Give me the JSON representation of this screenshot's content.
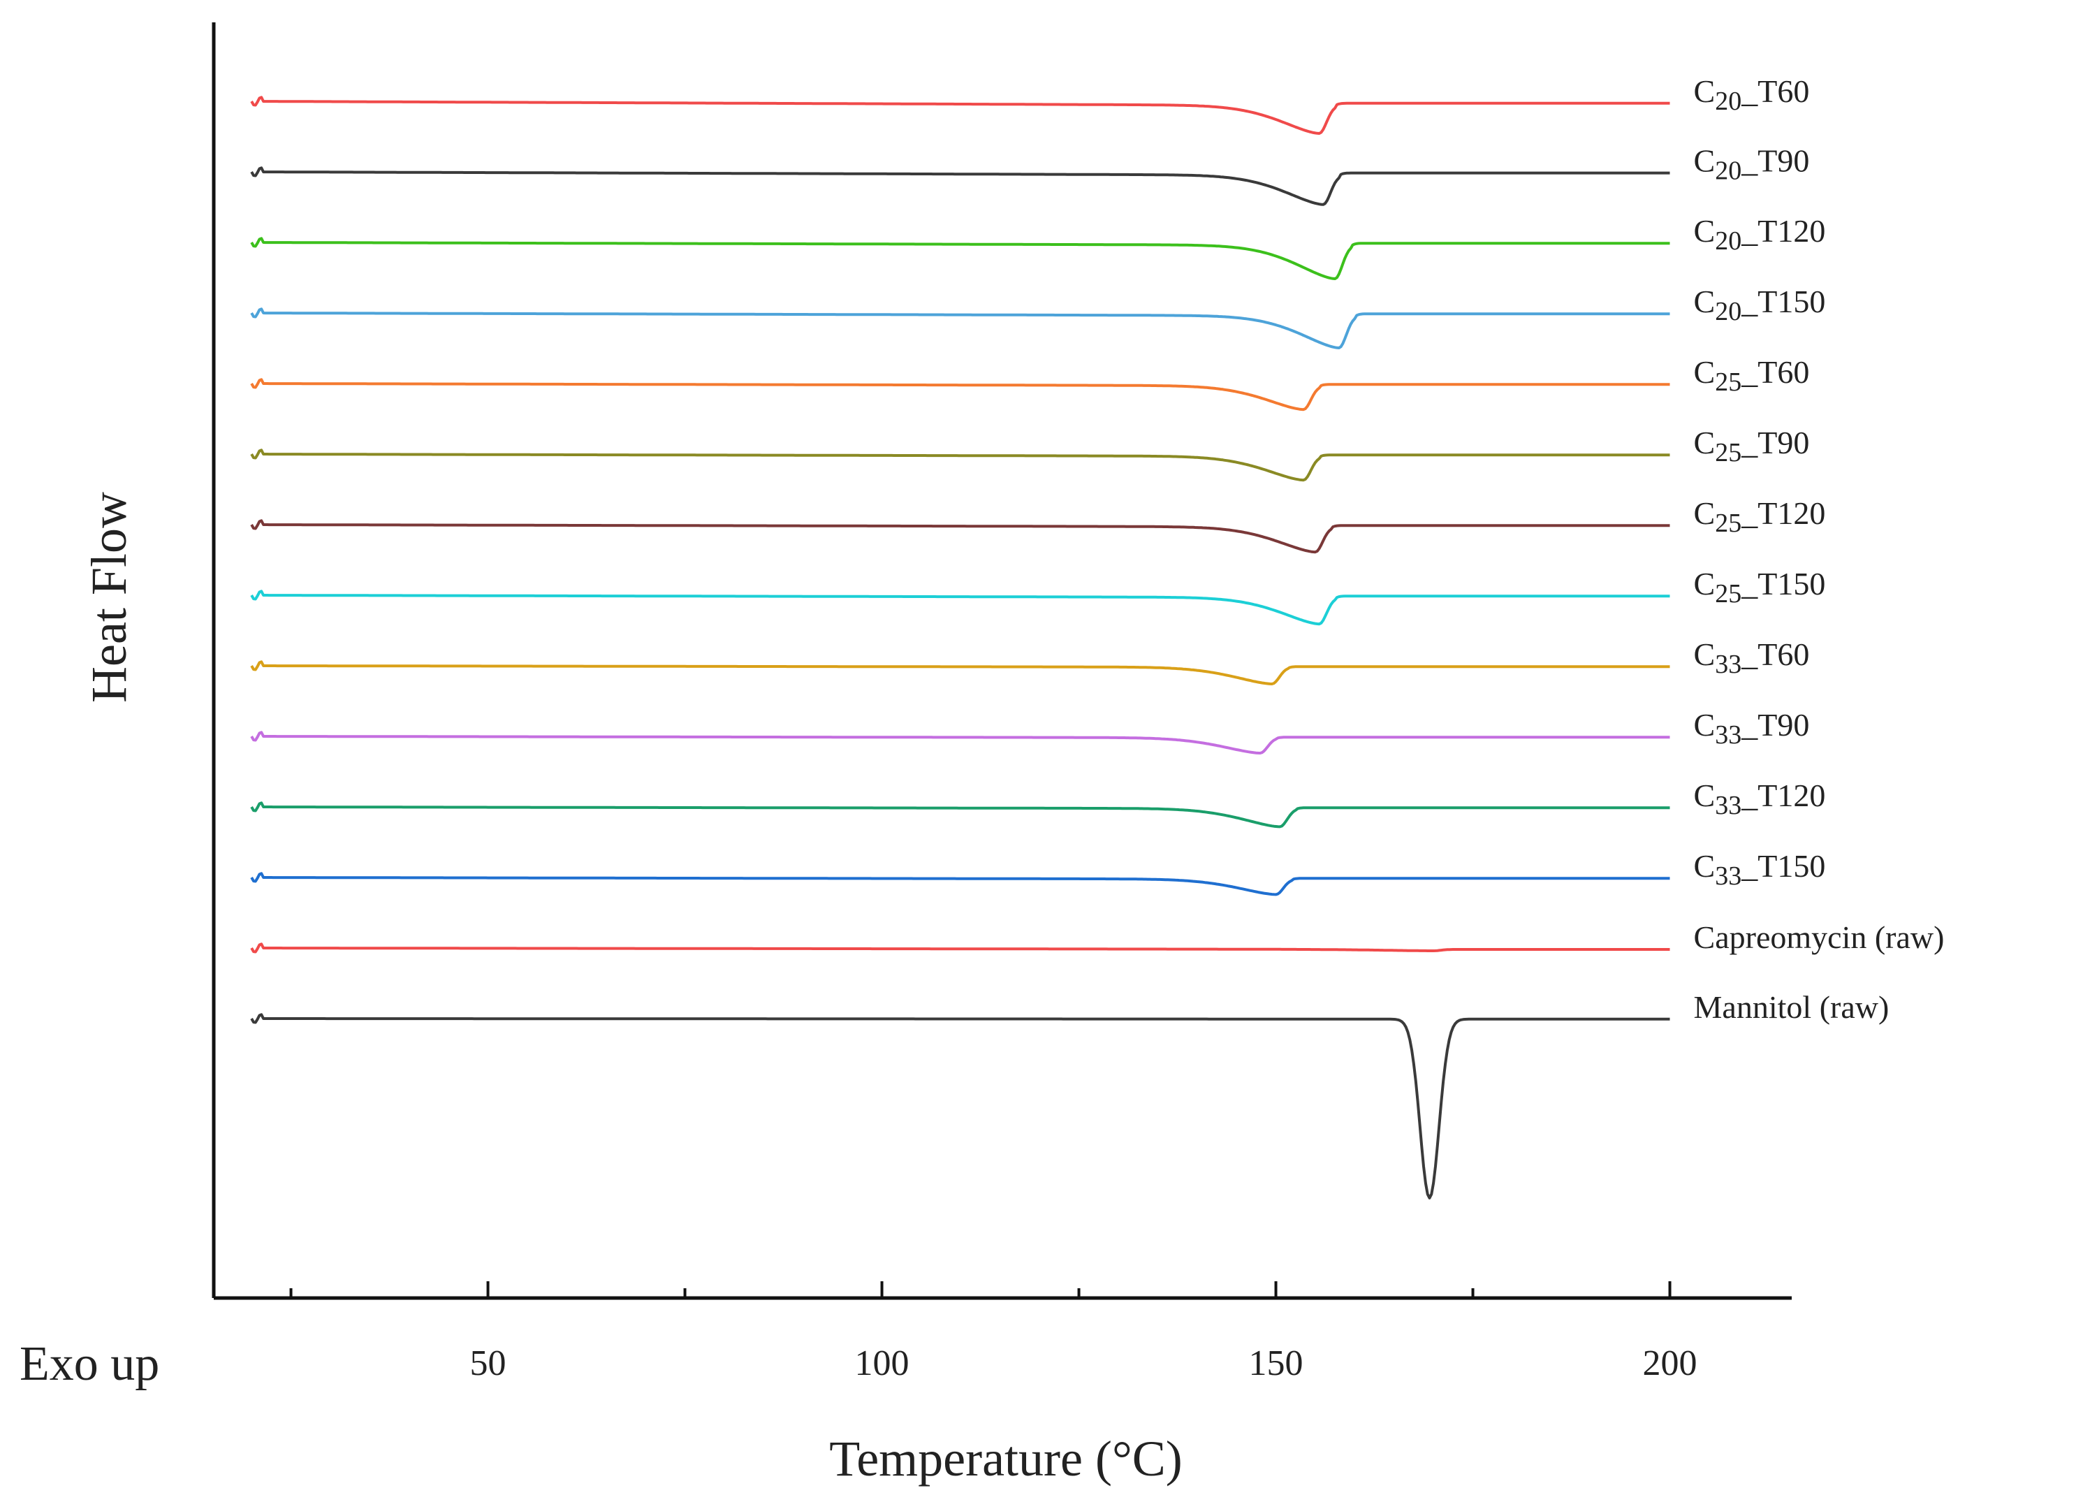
{
  "chart_data": {
    "type": "line",
    "title": "",
    "xlabel": "Temperature (°C)",
    "ylabel": "Heat Flow",
    "corner_note": "Exo up",
    "x_ticks": [
      50,
      100,
      150,
      200
    ],
    "xlim": [
      15,
      210
    ],
    "y_ticks": [],
    "grid": false,
    "legend": "inline labels to the right of each curve",
    "series": [
      {
        "name": "C20_T60",
        "label_main": "C",
        "label_sub": "20",
        "label_rest": "_T60",
        "color": "#f04a4a",
        "offset": 0,
        "peak_temp": 155.5,
        "depth": 1.0,
        "drift": 0.15,
        "width": 7,
        "step": 0.08
      },
      {
        "name": "C20_T90",
        "label_main": "C",
        "label_sub": "20",
        "label_rest": "_T90",
        "color": "#3a3a3a",
        "offset": 1,
        "peak_temp": 156.0,
        "depth": 1.05,
        "drift": 0.12,
        "width": 7,
        "step": 0.08
      },
      {
        "name": "C20_T120",
        "label_main": "C",
        "label_sub": "20",
        "label_rest": "_T120",
        "color": "#3cc01c",
        "offset": 2,
        "peak_temp": 157.5,
        "depth": 1.2,
        "drift": 0.1,
        "width": 7,
        "step": 0.07
      },
      {
        "name": "C20_T150",
        "label_main": "C",
        "label_sub": "20",
        "label_rest": "_T150",
        "color": "#4da3d9",
        "offset": 3,
        "peak_temp": 158.0,
        "depth": 1.15,
        "drift": 0.1,
        "width": 7,
        "step": 0.07
      },
      {
        "name": "C25_T60",
        "label_main": "C",
        "label_sub": "25",
        "label_rest": "_T60",
        "color": "#f47a30",
        "offset": 4,
        "peak_temp": 153.5,
        "depth": 0.85,
        "drift": 0.08,
        "width": 7,
        "step": 0.05
      },
      {
        "name": "C25_T90",
        "label_main": "C",
        "label_sub": "25",
        "label_rest": "_T90",
        "color": "#8a8a24",
        "offset": 5,
        "peak_temp": 153.5,
        "depth": 0.85,
        "drift": 0.08,
        "width": 7,
        "step": 0.05
      },
      {
        "name": "C25_T120",
        "label_main": "C",
        "label_sub": "25",
        "label_rest": "_T120",
        "color": "#7a3838",
        "offset": 6,
        "peak_temp": 155.0,
        "depth": 0.9,
        "drift": 0.08,
        "width": 7,
        "step": 0.05
      },
      {
        "name": "C25_T150",
        "label_main": "C",
        "label_sub": "25",
        "label_rest": "_T150",
        "color": "#1ccfd6",
        "offset": 7,
        "peak_temp": 155.5,
        "depth": 0.95,
        "drift": 0.08,
        "width": 7,
        "step": 0.05
      },
      {
        "name": "C33_T60",
        "label_main": "C",
        "label_sub": "33",
        "label_rest": "_T60",
        "color": "#d9a018",
        "offset": 8,
        "peak_temp": 149.5,
        "depth": 0.6,
        "drift": 0.05,
        "width": 7,
        "step": 0.02
      },
      {
        "name": "C33_T90",
        "label_main": "C",
        "label_sub": "33",
        "label_rest": "_T90",
        "color": "#c46ee0",
        "offset": 9,
        "peak_temp": 148.0,
        "depth": 0.55,
        "drift": 0.05,
        "width": 7,
        "step": 0.02
      },
      {
        "name": "C33_T120",
        "label_main": "C",
        "label_sub": "33",
        "label_rest": "_T120",
        "color": "#1a9e6a",
        "offset": 10,
        "peak_temp": 150.5,
        "depth": 0.65,
        "drift": 0.06,
        "width": 7,
        "step": 0.03
      },
      {
        "name": "C33_T150",
        "label_main": "C",
        "label_sub": "33",
        "label_rest": "_T150",
        "color": "#1f6fd0",
        "offset": 11,
        "peak_temp": 150.0,
        "depth": 0.55,
        "drift": 0.06,
        "width": 7,
        "step": 0.03
      },
      {
        "name": "Capreomycin (raw)",
        "label_main": "Capreomycin (raw)",
        "label_sub": "",
        "label_rest": "",
        "color": "#f04a4a",
        "offset": 12,
        "peak_temp": 170.0,
        "depth": 0.05,
        "drift": 0.05,
        "width": 10,
        "step": 0.0
      },
      {
        "name": "Mannitol (raw)",
        "label_main": "Mannitol (raw)",
        "label_sub": "",
        "label_rest": "",
        "color": "#3a3a3a",
        "offset": 13,
        "peak_temp": 169.5,
        "depth": 6.4,
        "drift": 0.02,
        "width": 1.7,
        "step": 0.0,
        "sharp": true
      }
    ]
  }
}
